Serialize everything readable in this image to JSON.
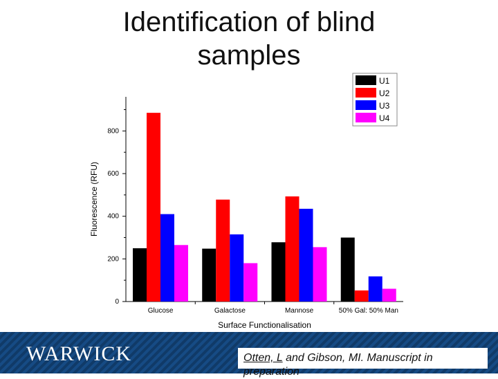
{
  "slide": {
    "title_line1": "Identification of blind",
    "title_line2": "samples"
  },
  "footer": {
    "logo": "WARWICK",
    "citation_author": "Otten, L",
    "citation_rest": " and Gibson, MI. Manuscript in",
    "citation_line2": "preparation",
    "band_color": "#103a68"
  },
  "chart_data": {
    "type": "bar",
    "title": "",
    "xlabel": "Surface Functionalisation",
    "ylabel": "Fluorescence (RFU)",
    "categories": [
      "Glucose",
      "Galactose",
      "Mannose",
      "50% Gal: 50% Man"
    ],
    "series": [
      {
        "name": "U1",
        "color": "#000000",
        "values": [
          250,
          248,
          278,
          300
        ]
      },
      {
        "name": "U2",
        "color": "#ff0000",
        "values": [
          885,
          478,
          493,
          52
        ]
      },
      {
        "name": "U3",
        "color": "#0000ff",
        "values": [
          410,
          315,
          435,
          118
        ]
      },
      {
        "name": "U4",
        "color": "#ff00ff",
        "values": [
          265,
          180,
          255,
          60
        ]
      }
    ],
    "ylim": [
      0,
      960
    ],
    "yticks": [
      0,
      200,
      400,
      600,
      800
    ],
    "grid": false,
    "legend_position": "top-right"
  }
}
